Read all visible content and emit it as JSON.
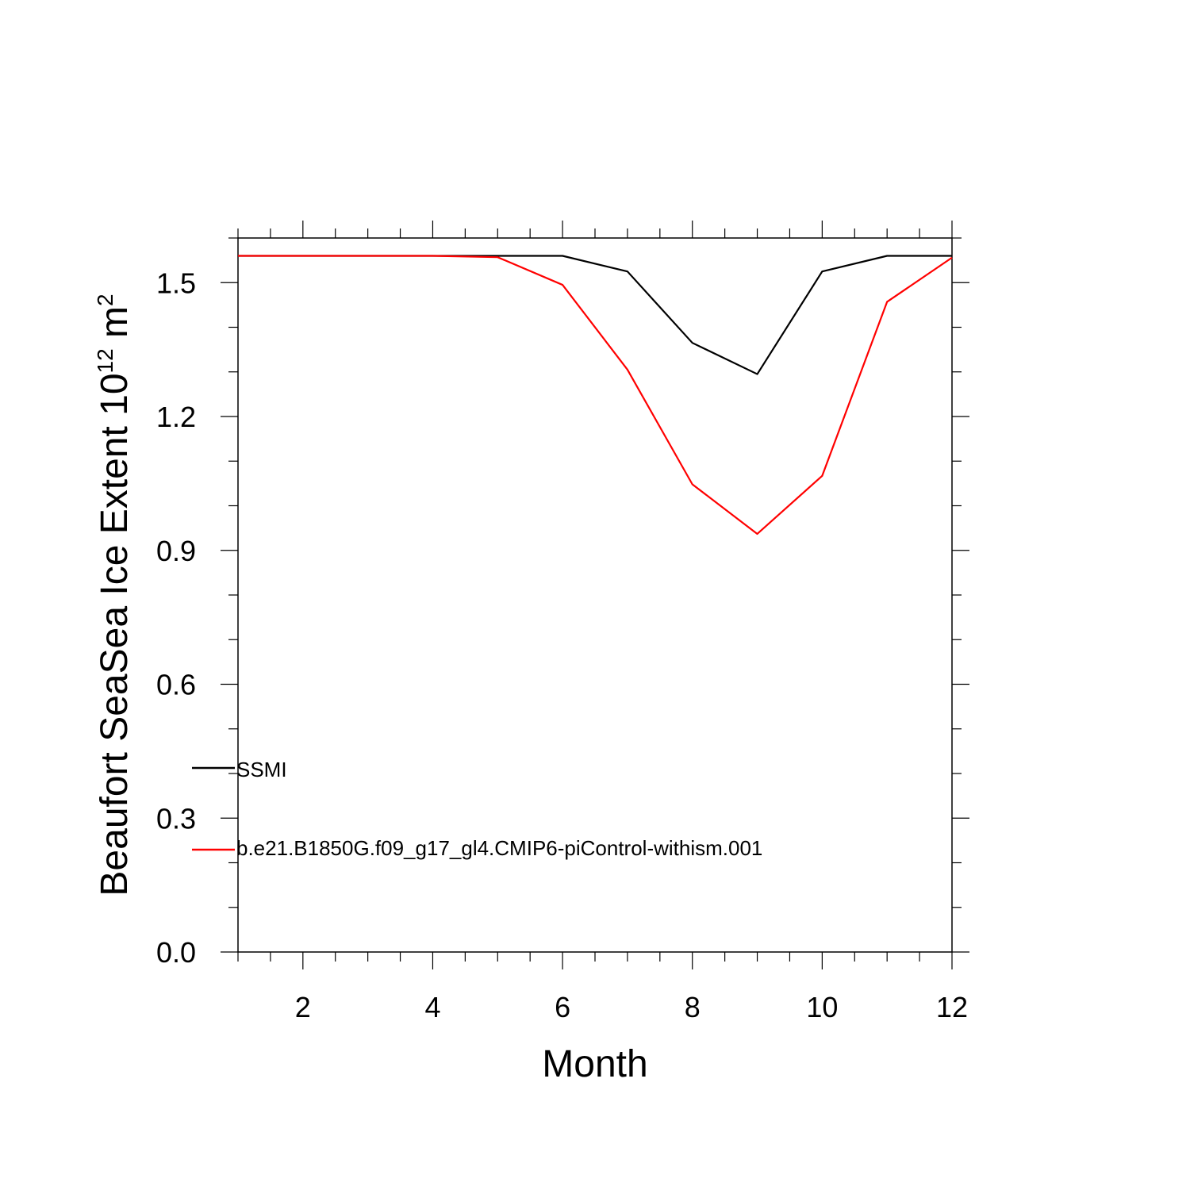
{
  "chart_data": {
    "type": "line",
    "xlabel": "Month",
    "ylabel_main": "Beaufort SeaSea Ice Extent 10",
    "ylabel_superscript": "12",
    "ylabel_unit": " m",
    "ylabel_unit_superscript": "2",
    "xlim": [
      1,
      12
    ],
    "ylim": [
      0.0,
      1.6
    ],
    "x_ticks": [
      2,
      4,
      6,
      8,
      10,
      12
    ],
    "x_tick_labels": [
      "2",
      "4",
      "6",
      "8",
      "10",
      "12"
    ],
    "y_ticks": [
      0.0,
      0.3,
      0.6,
      0.9,
      1.2,
      1.5
    ],
    "y_tick_labels": [
      "0.0",
      "0.3",
      "0.6",
      "0.9",
      "1.2",
      "1.5"
    ],
    "grid": false,
    "legend_placement": "lower-left",
    "x": [
      1,
      2,
      3,
      4,
      5,
      6,
      7,
      8,
      9,
      10,
      11,
      12
    ],
    "series": [
      {
        "name": "SSMI",
        "color": "#000000",
        "values": [
          1.56,
          1.56,
          1.56,
          1.56,
          1.56,
          1.56,
          1.525,
          1.365,
          1.295,
          1.525,
          1.56,
          1.56
        ]
      },
      {
        "name": "b.e21.B1850G.f09_g17_gl4.CMIP6-piControl-withism.001",
        "color": "#ff0000",
        "values": [
          1.56,
          1.56,
          1.56,
          1.56,
          1.557,
          1.495,
          1.305,
          1.048,
          0.937,
          1.067,
          1.457,
          1.556
        ]
      }
    ]
  }
}
